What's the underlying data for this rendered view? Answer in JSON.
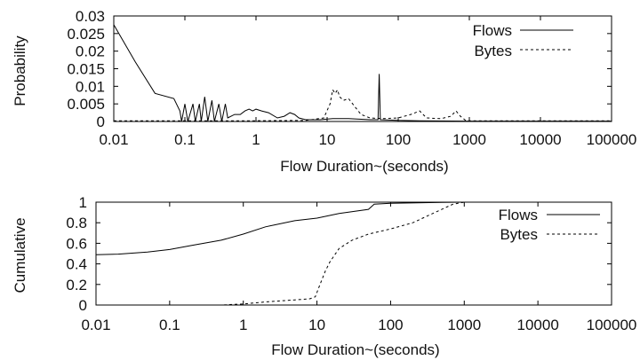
{
  "chart_data": [
    {
      "type": "line",
      "xlabel": "Flow Duration~(seconds)",
      "ylabel": "Probability",
      "xscale": "log",
      "xlim": [
        0.01,
        100000
      ],
      "ylim": [
        0,
        0.03
      ],
      "x_tick_labels": [
        "0.01",
        "0.1",
        "1",
        "10",
        "100",
        "1000",
        "10000",
        "100000"
      ],
      "y_tick_labels": [
        "0",
        "0.005",
        "0.01",
        "0.015",
        "0.02",
        "0.025",
        "0.03"
      ],
      "legend_position": "top-right",
      "series": [
        {
          "name": "Flows",
          "style": "solid",
          "points": [
            [
              0.01,
              0.0275
            ],
            [
              0.02,
              0.017
            ],
            [
              0.038,
              0.008
            ],
            [
              0.07,
              0.0065
            ],
            [
              0.085,
              0.003
            ],
            [
              0.09,
              0.0
            ],
            [
              0.1,
              0.005
            ],
            [
              0.11,
              0.0
            ],
            [
              0.13,
              0.005
            ],
            [
              0.14,
              0.0
            ],
            [
              0.16,
              0.005
            ],
            [
              0.17,
              0.0
            ],
            [
              0.19,
              0.007
            ],
            [
              0.21,
              0.0
            ],
            [
              0.24,
              0.006
            ],
            [
              0.26,
              0.0
            ],
            [
              0.3,
              0.005
            ],
            [
              0.33,
              0.0
            ],
            [
              0.37,
              0.005
            ],
            [
              0.4,
              0.001
            ],
            [
              0.5,
              0.002
            ],
            [
              0.6,
              0.002
            ],
            [
              0.7,
              0.003
            ],
            [
              0.8,
              0.0035
            ],
            [
              0.9,
              0.003
            ],
            [
              1.0,
              0.0035
            ],
            [
              1.2,
              0.003
            ],
            [
              1.5,
              0.0025
            ],
            [
              2.0,
              0.001
            ],
            [
              2.5,
              0.0015
            ],
            [
              3.0,
              0.0025
            ],
            [
              3.5,
              0.002
            ],
            [
              4.0,
              0.001
            ],
            [
              5.0,
              0.0005
            ],
            [
              8.0,
              0.0005
            ],
            [
              12.0,
              0.0008
            ],
            [
              20.0,
              0.0008
            ],
            [
              40.0,
              0.0005
            ],
            [
              52.0,
              0.0005
            ],
            [
              54.0,
              0.0135
            ],
            [
              56.0,
              0.0005
            ],
            [
              100.0,
              0.0003
            ],
            [
              200.0,
              0.0002
            ],
            [
              1000.0,
              0.0001
            ],
            [
              100000.0,
              0.0001
            ]
          ]
        },
        {
          "name": "Bytes",
          "style": "dashed",
          "points": [
            [
              0.01,
              0.0002
            ],
            [
              0.1,
              0.0002
            ],
            [
              1.0,
              0.0002
            ],
            [
              5.0,
              0.0003
            ],
            [
              9.0,
              0.001
            ],
            [
              11.0,
              0.005
            ],
            [
              12.0,
              0.009
            ],
            [
              13.0,
              0.008
            ],
            [
              14.0,
              0.009
            ],
            [
              15.0,
              0.007
            ],
            [
              17.0,
              0.006
            ],
            [
              20.0,
              0.0065
            ],
            [
              25.0,
              0.004
            ],
            [
              30.0,
              0.002
            ],
            [
              40.0,
              0.001
            ],
            [
              60.0,
              0.0008
            ],
            [
              100.0,
              0.001
            ],
            [
              150.0,
              0.002
            ],
            [
              200.0,
              0.003
            ],
            [
              250.0,
              0.001
            ],
            [
              400.0,
              0.0008
            ],
            [
              550.0,
              0.0015
            ],
            [
              650.0,
              0.003
            ],
            [
              750.0,
              0.0015
            ],
            [
              900.0,
              0.0002
            ],
            [
              100000.0,
              0.0002
            ]
          ]
        }
      ]
    },
    {
      "type": "line",
      "xlabel": "Flow Duration~(seconds)",
      "ylabel": "Cumulative",
      "xscale": "log",
      "xlim": [
        0.01,
        100000
      ],
      "ylim": [
        0,
        1
      ],
      "x_tick_labels": [
        "0.01",
        "0.1",
        "1",
        "10",
        "100",
        "1000",
        "10000",
        "100000"
      ],
      "y_tick_labels": [
        "0",
        "0.2",
        "0.4",
        "0.6",
        "0.8",
        "1"
      ],
      "legend_position": "top-right",
      "series": [
        {
          "name": "Flows",
          "style": "solid",
          "points": [
            [
              0.01,
              0.49
            ],
            [
              0.02,
              0.495
            ],
            [
              0.05,
              0.515
            ],
            [
              0.1,
              0.54
            ],
            [
              0.2,
              0.58
            ],
            [
              0.5,
              0.63
            ],
            [
              1.0,
              0.69
            ],
            [
              2.0,
              0.76
            ],
            [
              5.0,
              0.82
            ],
            [
              10.0,
              0.845
            ],
            [
              20.0,
              0.89
            ],
            [
              50.0,
              0.93
            ],
            [
              60.0,
              0.98
            ],
            [
              100.0,
              0.99
            ],
            [
              500.0,
              0.997
            ],
            [
              1000.0,
              1.0
            ],
            [
              100000.0,
              1.0
            ]
          ]
        },
        {
          "name": "Bytes",
          "style": "dashed",
          "points": [
            [
              0.01,
              0.0
            ],
            [
              0.5,
              0.0
            ],
            [
              1.0,
              0.01
            ],
            [
              2.0,
              0.03
            ],
            [
              5.0,
              0.05
            ],
            [
              8.0,
              0.06
            ],
            [
              9.5,
              0.08
            ],
            [
              11.0,
              0.2
            ],
            [
              13.0,
              0.33
            ],
            [
              15.0,
              0.42
            ],
            [
              20.0,
              0.55
            ],
            [
              30.0,
              0.63
            ],
            [
              50.0,
              0.69
            ],
            [
              100.0,
              0.74
            ],
            [
              200.0,
              0.8
            ],
            [
              400.0,
              0.9
            ],
            [
              700.0,
              0.98
            ],
            [
              1000.0,
              1.0
            ],
            [
              100000.0,
              1.0
            ]
          ]
        }
      ]
    }
  ]
}
